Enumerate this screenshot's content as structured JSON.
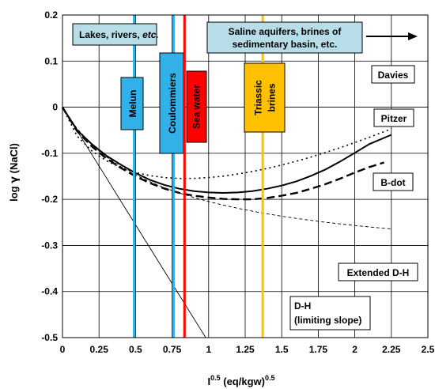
{
  "chart_data": {
    "type": "line",
    "xlabel": {
      "base": "I",
      "sup1": "0.5",
      "main": " (eq/kgw)",
      "sup2": "0.5"
    },
    "ylabel": {
      "prefix": "log ",
      "greek": "γ",
      "suffix": " (NaCl)"
    },
    "xlim": [
      0,
      2.5
    ],
    "ylim": [
      -0.5,
      0.2
    ],
    "x_ticks": [
      0,
      0.25,
      0.5,
      0.75,
      1,
      1.25,
      1.5,
      1.75,
      2,
      2.25,
      2.5
    ],
    "x_tick_labels": [
      "0",
      "0.25",
      "0.5",
      "0.75",
      "1",
      "1.25",
      "1.5",
      "1.75",
      "2",
      "2.25",
      "2.5"
    ],
    "y_ticks": [
      0.2,
      0.1,
      0,
      -0.1,
      -0.2,
      -0.3,
      -0.4,
      -0.5
    ],
    "y_tick_labels": [
      "0.2",
      "0.1",
      "0",
      "-0.1",
      "-0.2",
      "-0.3",
      "-0.4",
      "-0.5"
    ],
    "grid": true,
    "series": [
      {
        "name": "Davies",
        "style": "dotted",
        "x": [
          0,
          0.1,
          0.2,
          0.3,
          0.4,
          0.5,
          0.6,
          0.7,
          0.8,
          0.9,
          1.0,
          1.1,
          1.2,
          1.3,
          1.4,
          1.5,
          1.6,
          1.7,
          1.8,
          1.9,
          2.0,
          2.1,
          2.25
        ],
        "y": [
          0,
          -0.0626,
          -0.0945,
          -0.1162,
          -0.1311,
          -0.1417,
          -0.1486,
          -0.1528,
          -0.1546,
          -0.1545,
          -0.1528,
          -0.1496,
          -0.1451,
          -0.1396,
          -0.133,
          -0.1255,
          -0.1172,
          -0.1081,
          -0.0983,
          -0.0879,
          -0.0769,
          -0.0653,
          -0.0471
        ]
      },
      {
        "name": "Pitzer",
        "style": "solid",
        "x": [
          0,
          0.1,
          0.2,
          0.3,
          0.4,
          0.5,
          0.6,
          0.7,
          0.8,
          0.9,
          1.0,
          1.1,
          1.2,
          1.3,
          1.4,
          1.5,
          1.6,
          1.7,
          1.8,
          1.9,
          2.0,
          2.1,
          2.25
        ],
        "y": [
          0,
          -0.05,
          -0.08,
          -0.105,
          -0.125,
          -0.143,
          -0.158,
          -0.169,
          -0.177,
          -0.182,
          -0.185,
          -0.186,
          -0.185,
          -0.182,
          -0.177,
          -0.17,
          -0.161,
          -0.149,
          -0.135,
          -0.118,
          -0.099,
          -0.08,
          -0.06
        ]
      },
      {
        "name": "B-dot",
        "style": "dashed",
        "x": [
          0,
          0.1,
          0.2,
          0.3,
          0.4,
          0.5,
          0.6,
          0.7,
          0.8,
          0.9,
          1.0,
          1.1,
          1.2,
          1.3,
          1.4,
          1.5,
          1.6,
          1.7,
          1.8,
          1.9,
          2.0,
          2.1,
          2.2
        ],
        "y": [
          0,
          -0.052,
          -0.085,
          -0.111,
          -0.132,
          -0.15,
          -0.165,
          -0.177,
          -0.186,
          -0.192,
          -0.196,
          -0.199,
          -0.2,
          -0.2,
          -0.197,
          -0.192,
          -0.186,
          -0.177,
          -0.167,
          -0.155,
          -0.142,
          -0.13,
          -0.12
        ]
      },
      {
        "name": "Extended D-H",
        "style": "thin-dashed",
        "x": [
          0,
          0.1,
          0.2,
          0.3,
          0.4,
          0.5,
          0.6,
          0.7,
          0.8,
          0.9,
          1.0,
          1.1,
          1.2,
          1.3,
          1.4,
          1.5,
          1.6,
          1.7,
          1.8,
          1.9,
          2.0,
          2.1,
          2.25
        ],
        "y": [
          0,
          -0.0467,
          -0.0809,
          -0.1076,
          -0.1292,
          -0.147,
          -0.1621,
          -0.175,
          -0.1862,
          -0.196,
          -0.2047,
          -0.2125,
          -0.2194,
          -0.2257,
          -0.2314,
          -0.2366,
          -0.2413,
          -0.2456,
          -0.2496,
          -0.2533,
          -0.2567,
          -0.2598,
          -0.2641
        ]
      },
      {
        "name": "D-H",
        "name2": "(limiting slope)",
        "style": "thin-solid",
        "x": [
          0,
          0.98
        ],
        "y": [
          0,
          -0.5
        ]
      }
    ],
    "vertical_lines": [
      {
        "label": "Melun",
        "x": 0.49,
        "color": "#33b0e8",
        "box_color": "#33b0e8",
        "text_color": "#000000"
      },
      {
        "label": "Coulommiers",
        "x": 0.76,
        "color": "#33b0e8",
        "box_color": "#33b0e8",
        "text_color": "#000000"
      },
      {
        "label": "Sea water",
        "x": 0.835,
        "color": "#ff0000",
        "box_color": "#ff0000",
        "text_color": "#000000"
      },
      {
        "label": "Triassic",
        "label2": "brines",
        "x": 1.37,
        "color": "#ffc000",
        "box_color": "#ffc000",
        "text_color": "#000000"
      }
    ],
    "annotations": {
      "lakes": {
        "text": "Lakes, rivers, ",
        "italic": "etc."
      },
      "saline": {
        "line1": "Saline aquifers, brines of",
        "line2": "sedimentary basin, etc."
      },
      "davies": "Davies",
      "pitzer": "Pitzer",
      "bdot": "B-dot",
      "extdh": "Extended D-H",
      "dh1": "D-H",
      "dh2": "(limiting slope)"
    },
    "colors": {
      "annotation_box": "#b7dde8",
      "grid": "#000000"
    }
  }
}
